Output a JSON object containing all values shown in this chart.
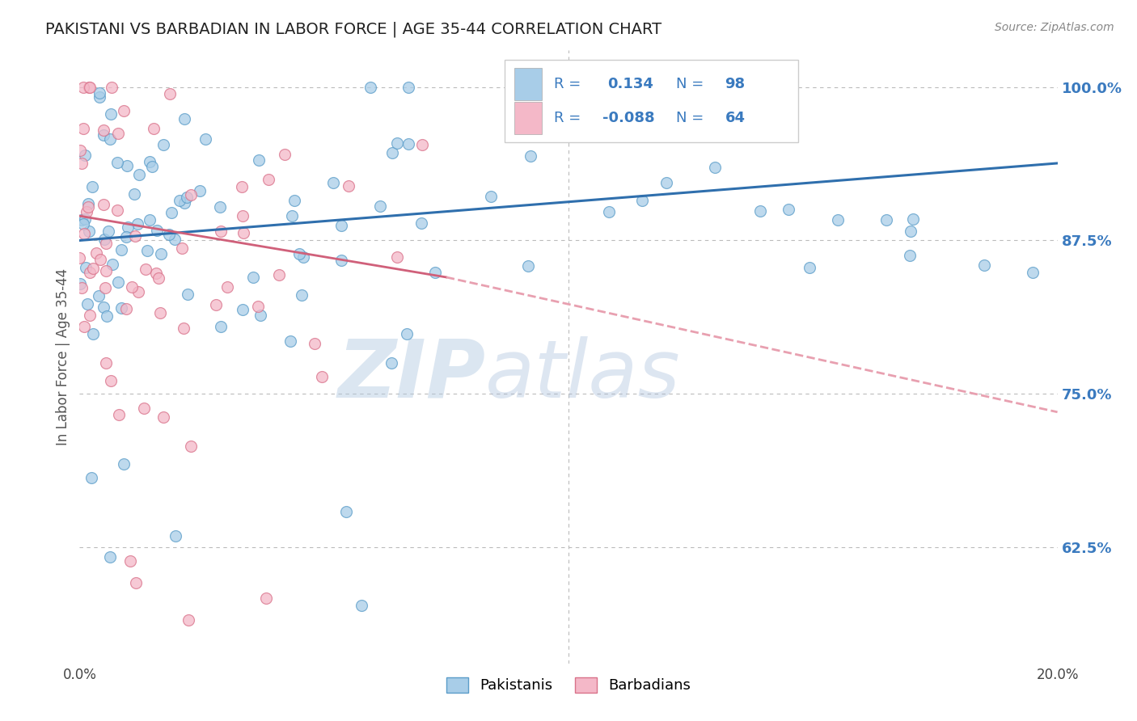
{
  "title": "PAKISTANI VS BARBADIAN IN LABOR FORCE | AGE 35-44 CORRELATION CHART",
  "source": "Source: ZipAtlas.com",
  "ylabel": "In Labor Force | Age 35-44",
  "yticks": [
    "62.5%",
    "75.0%",
    "87.5%",
    "100.0%"
  ],
  "ytick_vals": [
    0.625,
    0.75,
    0.875,
    1.0
  ],
  "xlim": [
    0.0,
    0.2
  ],
  "ylim": [
    0.53,
    1.03
  ],
  "r_pakistani": 0.134,
  "n_pakistani": 98,
  "r_barbadian": -0.088,
  "n_barbadian": 64,
  "blue_color": "#a8cde8",
  "blue_edge": "#5b9dc9",
  "pink_color": "#f4b8c8",
  "pink_edge": "#d9728a",
  "trend_blue": "#2f6fad",
  "trend_pink": "#d0607a",
  "trend_pink_dash": "#e8a0b0",
  "text_color": "#3a7abf",
  "legend_label1": "Pakistanis",
  "legend_label2": "Barbadians",
  "watermark_zip": "ZIP",
  "watermark_atlas": "atlas"
}
